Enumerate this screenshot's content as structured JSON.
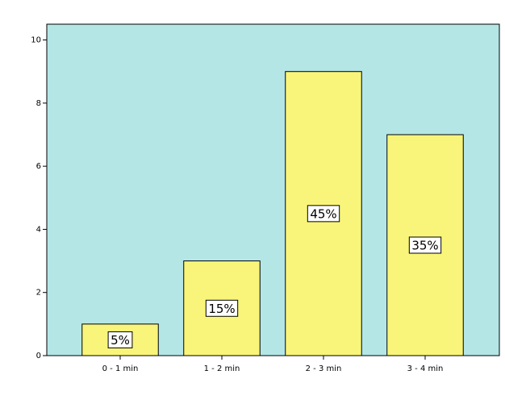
{
  "chart_data": {
    "type": "bar",
    "categories": [
      "0 - 1 min",
      "1 - 2 min",
      "2 - 3 min",
      "3 - 4 min"
    ],
    "values": [
      1,
      3,
      9,
      7
    ],
    "bar_labels": [
      "5%",
      "15%",
      "45%",
      "35%"
    ],
    "color": "#f8f57a",
    "background": "#b5e6e6",
    "ylim": [
      0,
      10.5
    ],
    "yticks": [
      0,
      2,
      4,
      6,
      8,
      10
    ],
    "grid": false
  }
}
